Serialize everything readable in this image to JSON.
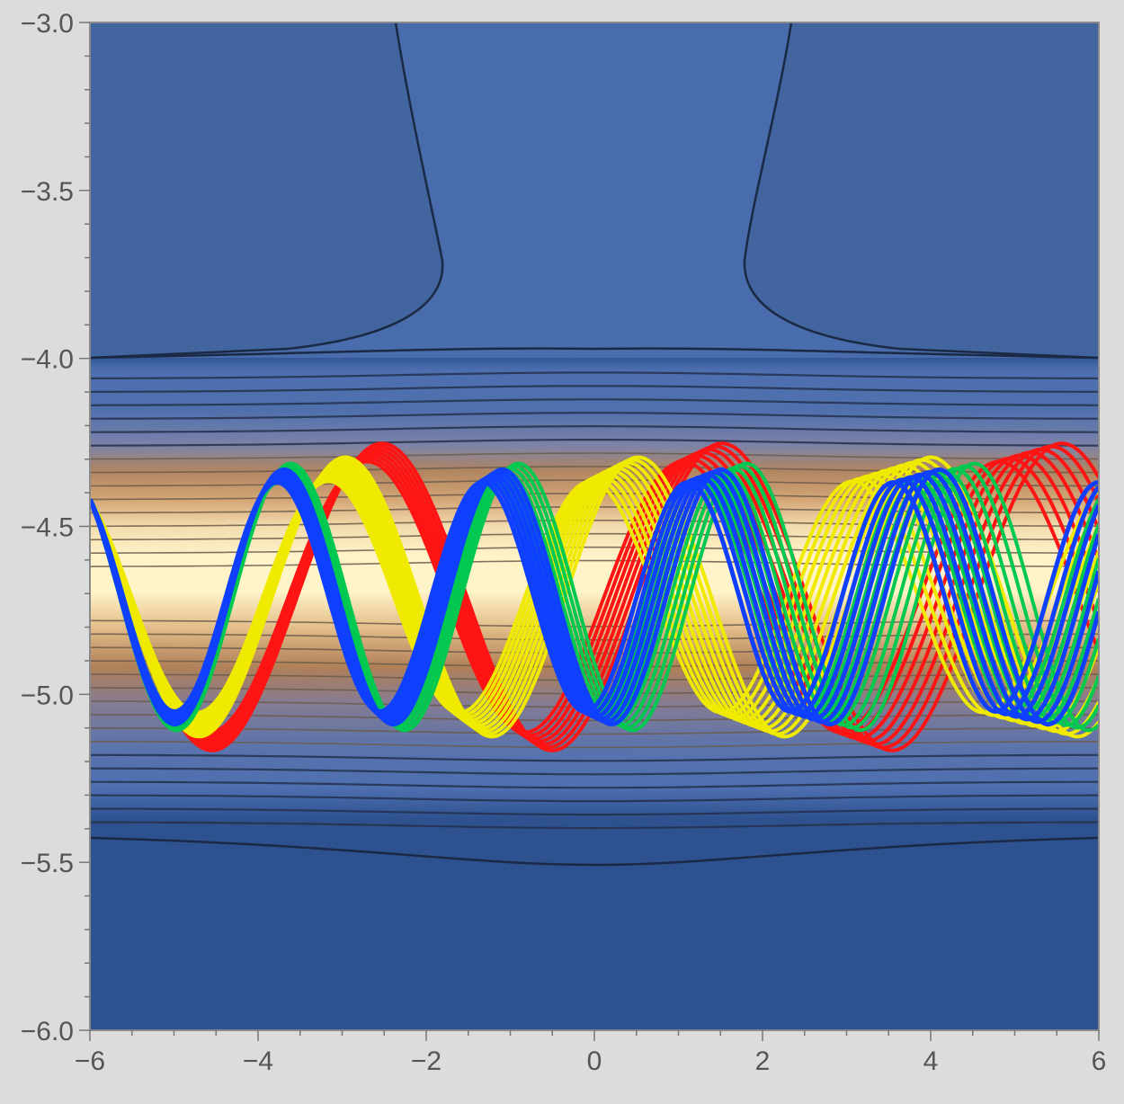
{
  "chart_data": {
    "type": "contour",
    "title": "",
    "xlabel": "",
    "ylabel": "",
    "xlim": [
      -6,
      6
    ],
    "ylim": [
      -6,
      -3
    ],
    "grid": false,
    "x_ticks": [
      "−6",
      "−4",
      "−2",
      "0",
      "2",
      "4",
      "6"
    ],
    "y_ticks": [
      "−3.0",
      "−3.5",
      "−4.0",
      "−4.5",
      "−5.0",
      "−5.5",
      "−6.0"
    ],
    "background": {
      "description": "contour density map centred on y = -4.71",
      "center_y": -4.71,
      "colors": {
        "low": "#2e5290",
        "mid": "#4d6fb0",
        "warm": "#c0814a",
        "peak": "#fff3c8"
      }
    },
    "series": [
      {
        "color": "#ff1414",
        "curves": 7,
        "center": -4.71,
        "amplitude": 0.43,
        "wavelength": 3.9,
        "x0": -6.0,
        "y0": -5.0
      },
      {
        "color": "#f0ea00",
        "curves": 10,
        "center": -4.71,
        "amplitude": 0.38,
        "wavelength": 3.3,
        "x0": -6.0,
        "y0": -5.0
      },
      {
        "color": "#00c850",
        "curves": 8,
        "center": -4.71,
        "amplitude": 0.37,
        "wavelength": 2.6,
        "x0": -6.0,
        "y0": -5.0
      },
      {
        "color": "#1040ff",
        "curves": 6,
        "center": -4.71,
        "amplitude": 0.36,
        "wavelength": 2.52,
        "x0": -6.0,
        "y0": -5.0
      }
    ]
  }
}
